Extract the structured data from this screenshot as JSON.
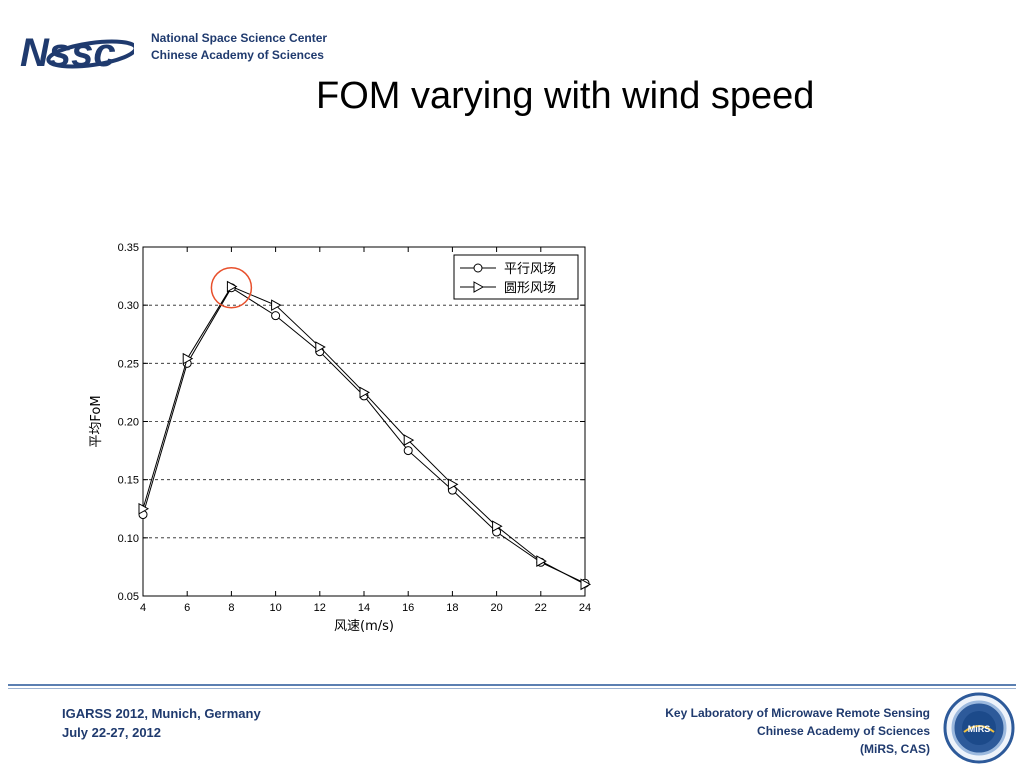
{
  "header": {
    "logo_text": "Nssc",
    "org_line1": "National Space Science Center",
    "org_line2": "Chinese Academy of Sciences"
  },
  "slide": {
    "title": "FOM varying with wind speed"
  },
  "chart_data": {
    "type": "line",
    "title": "",
    "xlabel": "风速(m/s)",
    "ylabel": "平均FoM",
    "x": [
      4,
      6,
      8,
      10,
      12,
      14,
      16,
      18,
      20,
      22,
      24
    ],
    "xticks": [
      "4",
      "6",
      "8",
      "10",
      "12",
      "14",
      "16",
      "18",
      "20",
      "22",
      "24"
    ],
    "yticks": [
      "0.05",
      "0.10",
      "0.15",
      "0.20",
      "0.25",
      "0.30",
      "0.35"
    ],
    "xlim": [
      4,
      24
    ],
    "ylim": [
      0.05,
      0.35
    ],
    "grid": "horizontal dashed",
    "legend_position": "top-right",
    "series": [
      {
        "name": "平行风场",
        "marker": "circle",
        "values": [
          0.12,
          0.25,
          0.315,
          0.291,
          0.26,
          0.222,
          0.175,
          0.141,
          0.105,
          0.079,
          0.061
        ]
      },
      {
        "name": "圆形风场",
        "marker": "triangle-right",
        "values": [
          0.125,
          0.254,
          0.316,
          0.3,
          0.264,
          0.225,
          0.184,
          0.146,
          0.11,
          0.08,
          0.06
        ]
      }
    ],
    "highlight": {
      "x": 8,
      "y": 0.315,
      "color": "#e8502c"
    }
  },
  "footer": {
    "left_line1": "IGARSS 2012, Munich, Germany",
    "left_line2": "July 22-27, 2012",
    "right_line1": "Key Laboratory of Microwave Remote Sensing",
    "right_line2": "Chinese Academy of Sciences",
    "right_line3": "(MiRS, CAS)",
    "seal_text": "MiRS"
  },
  "colors": {
    "brand_blue": "#1f3a6e",
    "rule_blue": "#5b7fb1",
    "highlight": "#e8502c"
  }
}
